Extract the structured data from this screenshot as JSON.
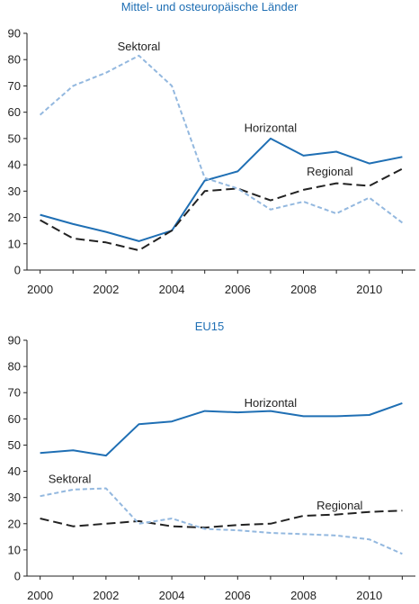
{
  "chart_data": [
    {
      "type": "line",
      "title": "Mittel- und osteuropäische Länder",
      "x": [
        2000,
        2001,
        2002,
        2003,
        2004,
        2005,
        2006,
        2007,
        2008,
        2009,
        2010,
        2011
      ],
      "xlim": [
        1999.6,
        2011.4
      ],
      "xticks": [
        2000,
        2002,
        2004,
        2006,
        2008,
        2010
      ],
      "ylim": [
        0,
        90
      ],
      "yticks": [
        0,
        10,
        20,
        30,
        40,
        50,
        60,
        70,
        80,
        90
      ],
      "grid": false,
      "series": [
        {
          "name": "Horizontal",
          "color": "#1f6fb4",
          "style": "solid",
          "values": [
            21,
            17.5,
            14.5,
            11,
            15,
            34,
            37.5,
            50,
            43.5,
            45,
            40.5,
            43
          ]
        },
        {
          "name": "Regional",
          "color": "#222222",
          "style": "dashed",
          "values": [
            19,
            12,
            10.5,
            7.5,
            15,
            30,
            31,
            26.5,
            30.5,
            33,
            32,
            38.5
          ]
        },
        {
          "name": "Sektoral",
          "color": "#93b8df",
          "style": "dashed",
          "values": [
            59,
            70,
            75,
            81.5,
            70,
            35,
            31,
            23,
            26,
            21.5,
            27.5,
            18
          ]
        }
      ]
    },
    {
      "type": "line",
      "title": "EU15",
      "x": [
        2000,
        2001,
        2002,
        2003,
        2004,
        2005,
        2006,
        2007,
        2008,
        2009,
        2010,
        2011
      ],
      "xlim": [
        1999.6,
        2011.4
      ],
      "xticks": [
        2000,
        2002,
        2004,
        2006,
        2008,
        2010
      ],
      "ylim": [
        0,
        90
      ],
      "yticks": [
        0,
        10,
        20,
        30,
        40,
        50,
        60,
        70,
        80,
        90
      ],
      "grid": false,
      "series": [
        {
          "name": "Horizontal",
          "color": "#1f6fb4",
          "style": "solid",
          "values": [
            47,
            48,
            46,
            58,
            59,
            63,
            62.5,
            63,
            61,
            61,
            61.5,
            66
          ]
        },
        {
          "name": "Regional",
          "color": "#222222",
          "style": "dashed",
          "values": [
            22,
            19,
            20,
            21,
            19,
            18.5,
            19.5,
            20,
            23,
            23.5,
            24.5,
            25
          ]
        },
        {
          "name": "Sektoral",
          "color": "#93b8df",
          "style": "dashed",
          "values": [
            30.5,
            33,
            33.5,
            20,
            22,
            18,
            17.5,
            16.5,
            16,
            15.5,
            14,
            8.5
          ]
        }
      ]
    }
  ]
}
